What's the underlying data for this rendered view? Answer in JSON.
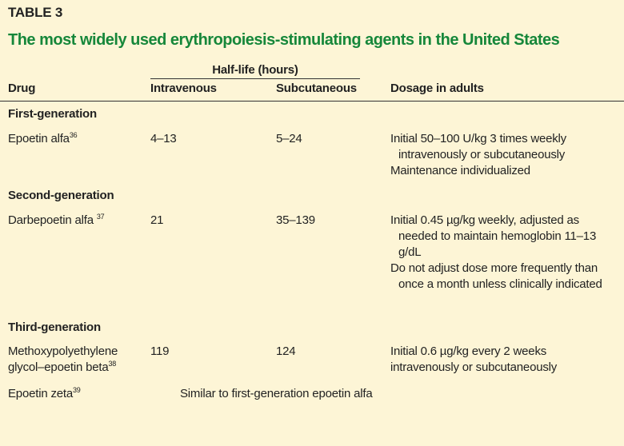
{
  "label": "TABLE 3",
  "title": "The most widely used erythropoiesis-stimulating agents in the United States",
  "header": {
    "group": "Half-life (hours)",
    "columns": [
      "Drug",
      "Intravenous",
      "Subcutaneous",
      "Dosage in adults"
    ]
  },
  "sections": [
    {
      "name": "First-generation",
      "rows": [
        {
          "drug": "Epoetin alfa",
          "ref": "36",
          "intravenous": "4–13",
          "subcutaneous": "5–24",
          "dosage": [
            "Initial 50–100 U/kg 3 times weekly intravenously or subcutaneously",
            "Maintenance individualized"
          ]
        }
      ]
    },
    {
      "name": "Second-generation",
      "rows": [
        {
          "drug": "Darbepoetin alfa",
          "ref": "37",
          "intravenous": "21",
          "subcutaneous": "35–139",
          "dosage": [
            "Initial 0.45 µg/kg weekly, adjusted as needed to maintain hemoglobin 11–13 g/dL",
            "Do not adjust dose more frequently than once a month unless clinically indicated"
          ]
        }
      ]
    },
    {
      "name": "Third-generation",
      "rows": [
        {
          "drug": "Methoxypolyethylene glycol–epoetin beta",
          "ref": "38",
          "intravenous": "119",
          "subcutaneous": "124",
          "dosage": [
            "Initial 0.6 µg/kg every 2 weeks intravenously or subcutaneously"
          ]
        },
        {
          "drug": "Epoetin zeta",
          "ref": "39",
          "note": "Similar to first-generation epoetin alfa"
        }
      ]
    }
  ]
}
